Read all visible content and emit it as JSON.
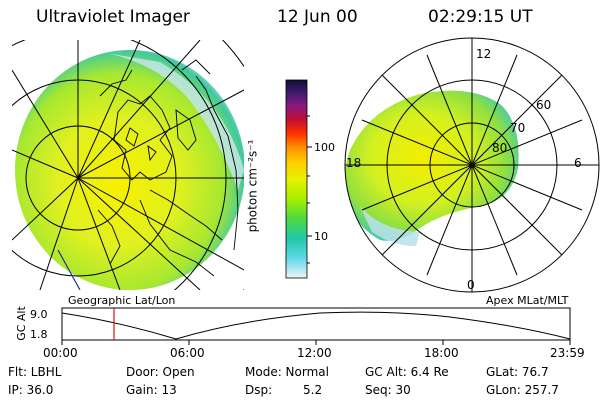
{
  "header": {
    "instrument": "Ultraviolet Imager",
    "date": "12 Jun 00",
    "time": "02:29:15 UT"
  },
  "colorbar": {
    "unit_label": "photon cm⁻²s⁻¹",
    "ticks": [
      "100",
      "10"
    ],
    "colors": [
      "#1a1a4a",
      "#3a1a6a",
      "#6a1a8a",
      "#a0104a",
      "#d01818",
      "#ff3a00",
      "#ff8a00",
      "#ffcc00",
      "#e8f000",
      "#b8f000",
      "#70e820",
      "#30d070",
      "#20c0b8",
      "#60d8e8",
      "#c0e8f0",
      "#e8f0f0"
    ]
  },
  "polar_plot": {
    "mlt_labels": [
      "12",
      "6",
      "18",
      "0"
    ],
    "mlat_labels": [
      "60",
      "70",
      "80"
    ],
    "caption": "Apex MLat/MLT"
  },
  "map": {
    "caption": "Geographic Lat/Lon"
  },
  "altitude_plot": {
    "ylabel": "GC Alt",
    "yticks": [
      "9.0",
      "1.8"
    ],
    "xticks": [
      "00:00",
      "06:00",
      "12:00",
      "18:00",
      "23:59"
    ],
    "marker_time": "02:29:15",
    "curve_color": "#000000",
    "marker_color": "#e01010"
  },
  "status": {
    "filter": "Flt: LBHL",
    "door": "Door: Open",
    "mode": "Mode: Normal",
    "gc_alt": "GC Alt: 6.4 Re",
    "glat": "GLat: 76.7",
    "ip": "IP: 36.0",
    "gain": "Gain: 13",
    "dsp_label": "Dsp:",
    "dsp_value": "5.2",
    "seq": "Seq: 30",
    "glon": "GLon: 257.7"
  }
}
